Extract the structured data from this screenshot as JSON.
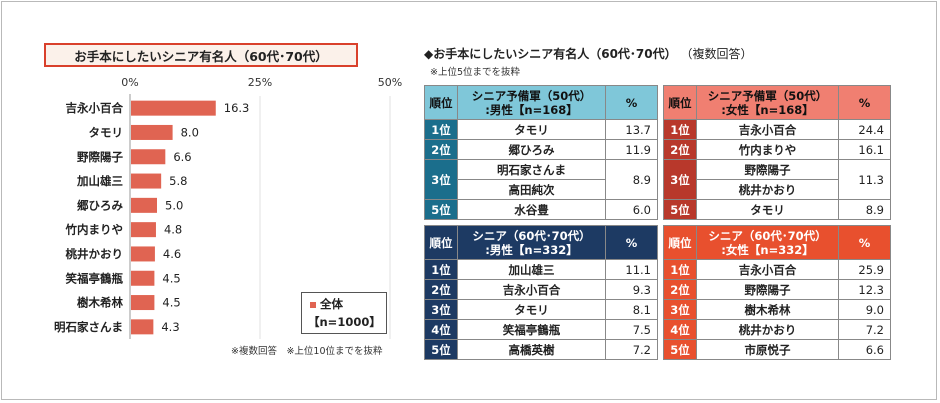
{
  "chart_data": {
    "type": "bar",
    "title": "お手本にしたいシニア有名人（60代･70代）",
    "categories": [
      "吉永小百合",
      "タモリ",
      "野際陽子",
      "加山雄三",
      "郷ひろみ",
      "竹内まりや",
      "桃井かおり",
      "笑福亭鶴瓶",
      "樹木希林",
      "明石家さんま"
    ],
    "values": [
      16.3,
      8.0,
      6.6,
      5.8,
      5.0,
      4.8,
      4.6,
      4.5,
      4.5,
      4.3
    ],
    "value_labels": [
      "16.3",
      "8.0",
      "6.6",
      "5.8",
      "5.0",
      "4.8",
      "4.6",
      "4.5",
      "4.5",
      "4.3"
    ],
    "xlim": [
      0,
      50
    ],
    "ticks": [
      "0%",
      "25%",
      "50%"
    ],
    "orientation": "horizontal",
    "legend_position": "bottom-right",
    "bar_color": "#e06452",
    "legend": {
      "name": "全体",
      "n": "【n=1000】"
    },
    "footnote": "※複数回答　※上位10位までを抜粋"
  },
  "right": {
    "heading": "◆お手本にしたいシニア有名人（60代･70代）",
    "heading_suffix": "（複数回答）",
    "note": "※上位5位までを抜粋",
    "tables": [
      {
        "rank_header": "順位",
        "group_line1": "シニア予備軍（50代）",
        "group_line2": ":男性【n=168】",
        "pct_header": "%",
        "rows": [
          {
            "rank": "1位",
            "name": "タモリ",
            "pct": "13.7"
          },
          {
            "rank": "2位",
            "name": "郷ひろみ",
            "pct": "11.9"
          },
          {
            "rank": "3位",
            "name": "明石家さんま",
            "pct": "8.9"
          },
          {
            "rank": "",
            "name": "高田純次",
            "pct": ""
          },
          {
            "rank": "5位",
            "name": "水谷豊",
            "pct": "6.0"
          }
        ]
      },
      {
        "rank_header": "順位",
        "group_line1": "シニア予備軍（50代）",
        "group_line2": ":女性【n=168】",
        "pct_header": "%",
        "rows": [
          {
            "rank": "1位",
            "name": "吉永小百合",
            "pct": "24.4"
          },
          {
            "rank": "2位",
            "name": "竹内まりや",
            "pct": "16.1"
          },
          {
            "rank": "3位",
            "name": "野際陽子",
            "pct": "11.3"
          },
          {
            "rank": "",
            "name": "桃井かおり",
            "pct": ""
          },
          {
            "rank": "5位",
            "name": "タモリ",
            "pct": "8.9"
          }
        ]
      },
      {
        "rank_header": "順位",
        "group_line1": "シニア（60代･70代）",
        "group_line2": ":男性【n=332】",
        "pct_header": "%",
        "rows": [
          {
            "rank": "1位",
            "name": "加山雄三",
            "pct": "11.1"
          },
          {
            "rank": "2位",
            "name": "吉永小百合",
            "pct": "9.3"
          },
          {
            "rank": "3位",
            "name": "タモリ",
            "pct": "8.1"
          },
          {
            "rank": "4位",
            "name": "笑福亭鶴瓶",
            "pct": "7.5"
          },
          {
            "rank": "5位",
            "name": "高橋英樹",
            "pct": "7.2"
          }
        ]
      },
      {
        "rank_header": "順位",
        "group_line1": "シニア（60代･70代）",
        "group_line2": ":女性【n=332】",
        "pct_header": "%",
        "rows": [
          {
            "rank": "1位",
            "name": "吉永小百合",
            "pct": "25.9"
          },
          {
            "rank": "2位",
            "name": "野際陽子",
            "pct": "12.3"
          },
          {
            "rank": "3位",
            "name": "樹木希林",
            "pct": "9.0"
          },
          {
            "rank": "4位",
            "name": "桃井かおり",
            "pct": "7.2"
          },
          {
            "rank": "5位",
            "name": "市原悦子",
            "pct": "6.6"
          }
        ]
      }
    ]
  }
}
